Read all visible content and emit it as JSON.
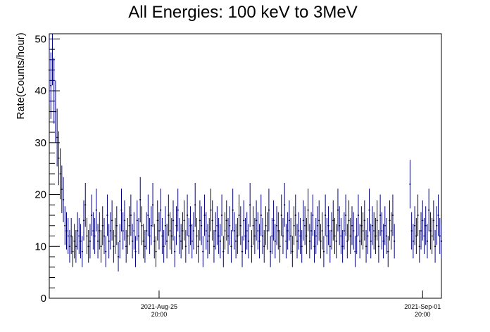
{
  "chart_data": {
    "type": "scatter",
    "title": "All Energies:  100 keV to 3MeV",
    "xlabel": "",
    "ylabel": "Rate(Counts/hour)",
    "ylim": [
      0,
      51
    ],
    "yticks": [
      0,
      10,
      20,
      30,
      40,
      50
    ],
    "xlim": [
      "2021-08-22 22:00",
      "2021-09-02 08:00"
    ],
    "xticks": [
      {
        "date": "2021-Aug-25",
        "time": "20:00",
        "x": "2021-08-25 20:00"
      },
      {
        "date": "2021-Sep-01",
        "time": "20:00",
        "x": "2021-09-01 20:00"
      }
    ],
    "marker_color": "#000080",
    "error_bars": "poisson (sqrt of counts)",
    "grid": false,
    "legend": "none",
    "series": [
      {
        "x_start": "2021-08-22 22:00",
        "x_step_hours": 1,
        "y": [
          44,
          41,
          48,
          40,
          36,
          31,
          27,
          24,
          21,
          19,
          14,
          13,
          12,
          10,
          12,
          9,
          11,
          10,
          13,
          12,
          11,
          9,
          15,
          18,
          12,
          10,
          11,
          16,
          13,
          12,
          17,
          11,
          13,
          10,
          14,
          12,
          9,
          16,
          11,
          13,
          15,
          10,
          12,
          14,
          8,
          11,
          17,
          13,
          15,
          10,
          12,
          14,
          16,
          11,
          13,
          9,
          15,
          12,
          19,
          14,
          11,
          10,
          13,
          16,
          12,
          14,
          18,
          11,
          9,
          15,
          13,
          17,
          12,
          10,
          14,
          11,
          16,
          13,
          12,
          15,
          9,
          14,
          17,
          12,
          11,
          13,
          15,
          10,
          16,
          12,
          14,
          11,
          13,
          18,
          12,
          10,
          15,
          14,
          9,
          16,
          13,
          11,
          12,
          17,
          15,
          10,
          13,
          14,
          12,
          11,
          16,
          9,
          13,
          15,
          12,
          14,
          10,
          17,
          13,
          11,
          12,
          16,
          14,
          9,
          15,
          12,
          13,
          11,
          18,
          10,
          14,
          12,
          15,
          13,
          11,
          16,
          12,
          10,
          14,
          13,
          17,
          9,
          12,
          15,
          11,
          14,
          13,
          10,
          16,
          12,
          18,
          11,
          13,
          15,
          12,
          9,
          14,
          16,
          11,
          13,
          12,
          10,
          15,
          14,
          12,
          17,
          11,
          13,
          16,
          10,
          12,
          14,
          15,
          11,
          13,
          9,
          16,
          12,
          14,
          10,
          13,
          15,
          12,
          11,
          17,
          14,
          12,
          10,
          13,
          16,
          11,
          15,
          12,
          14,
          13,
          9,
          12,
          16,
          11,
          14,
          13,
          15,
          10,
          12,
          17,
          11,
          14,
          13,
          12,
          15,
          10,
          16,
          13,
          11,
          14,
          12,
          9,
          15,
          13,
          16,
          11,
          12,
          14,
          10,
          13,
          15,
          12,
          11,
          16,
          14,
          13,
          10,
          12,
          15,
          11,
          14,
          9,
          13,
          16,
          12,
          11,
          14,
          15,
          13,
          10,
          12
        ],
        "gap": {
          "from": "2021-09-01 03:00",
          "to": "2021-09-01 12:00"
        },
        "y_after_gap": [
          22,
          13,
          11,
          14,
          12,
          16,
          10,
          13,
          15,
          12,
          14,
          11,
          17,
          13,
          12,
          15,
          10,
          14,
          16,
          12,
          11,
          13,
          15,
          9,
          14,
          12,
          16,
          13,
          11,
          15,
          12,
          14,
          10,
          13,
          17,
          12,
          11,
          14,
          13,
          15,
          12,
          10,
          16,
          13,
          11,
          14,
          12,
          15,
          13,
          16
        ]
      }
    ]
  }
}
